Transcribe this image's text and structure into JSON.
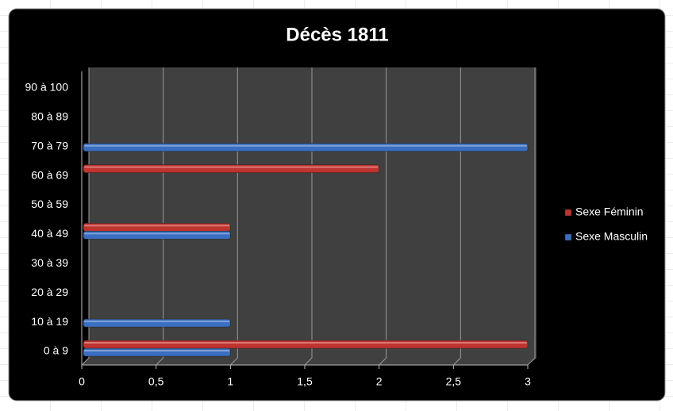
{
  "chart_data": {
    "type": "bar",
    "orientation": "horizontal",
    "title": "Décès 1811",
    "categories": [
      "0 à 9",
      "10 à 19",
      "20 à 29",
      "30 à 39",
      "40 à 49",
      "50 à 59",
      "60 à 69",
      "70 à 79",
      "80 à 89",
      "90 à 100"
    ],
    "series": [
      {
        "name": "Sexe Féminin",
        "color": "#c0332f",
        "values": [
          3,
          null,
          null,
          null,
          1,
          null,
          2,
          null,
          null,
          null
        ]
      },
      {
        "name": "Sexe Masculin",
        "color": "#3a6ec0",
        "values": [
          1,
          1,
          null,
          null,
          1,
          null,
          null,
          3,
          null,
          null
        ]
      }
    ],
    "xlim": [
      0,
      3
    ],
    "xticks": [
      0,
      {
        "value": 0.5,
        "label": "0,5"
      },
      1,
      {
        "value": 1.5,
        "label": "1,5"
      },
      2,
      {
        "value": 2.5,
        "label": "2,5"
      },
      3
    ],
    "grid": true,
    "legend": "right"
  }
}
